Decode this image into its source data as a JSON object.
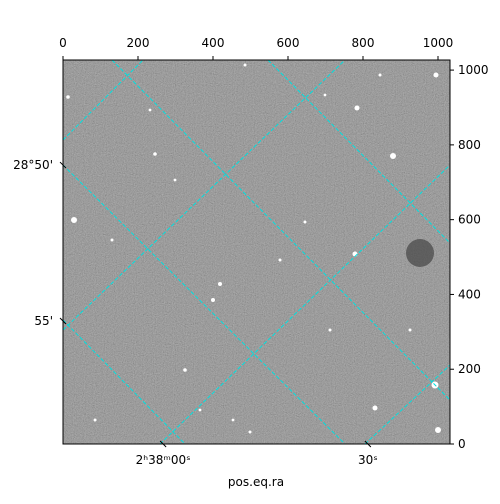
{
  "chart_data": {
    "type": "image",
    "xlabel": "pos.eq.ra",
    "xlim": [
      0,
      1032
    ],
    "ylim": [
      0,
      1027
    ],
    "xticks": [
      0,
      200,
      400,
      600,
      800,
      1000
    ],
    "yticks": [
      0,
      200,
      400,
      600,
      800,
      1000
    ],
    "ra_ticks": [
      {
        "value": 267,
        "label": "2ʰ38ᵐ00ˢ"
      },
      {
        "value": 813,
        "label": "30ˢ"
      }
    ],
    "dec_ticks": [
      {
        "value": 746,
        "label": "28°50'"
      },
      {
        "value": 329,
        "label": "55'"
      }
    ],
    "grid_color": "#00e0e0"
  }
}
